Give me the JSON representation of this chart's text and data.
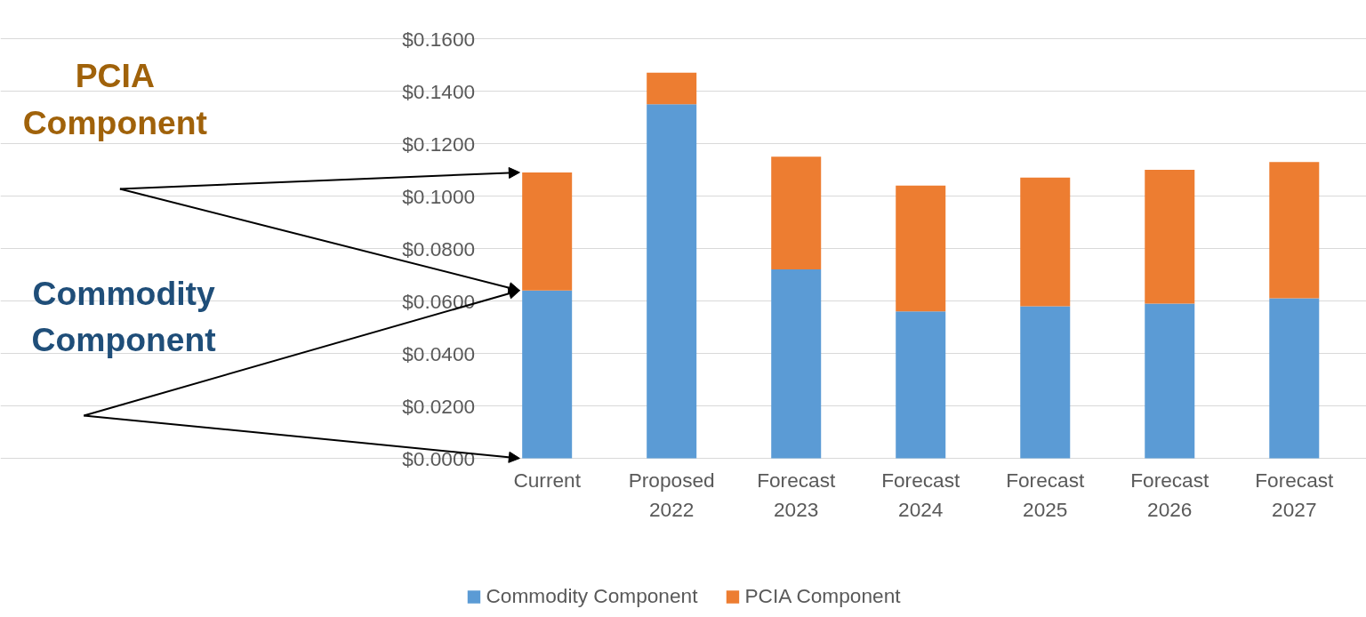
{
  "chart_data": {
    "type": "bar",
    "stacked": true,
    "categories": [
      "Current",
      "Proposed 2022",
      "Forecast 2023",
      "Forecast 2024",
      "Forecast 2025",
      "Forecast 2026",
      "Forecast 2027"
    ],
    "series": [
      {
        "name": "Commodity Component",
        "color": "#5b9bd5",
        "values": [
          0.064,
          0.135,
          0.072,
          0.056,
          0.058,
          0.059,
          0.061
        ]
      },
      {
        "name": "PCIA Component",
        "color": "#ed7d31",
        "values": [
          0.045,
          0.012,
          0.043,
          0.048,
          0.049,
          0.051,
          0.052
        ]
      }
    ],
    "ylim": [
      0,
      0.16
    ],
    "yticks": [
      {
        "value": 0,
        "label": "$0.0000"
      },
      {
        "value": 0.02,
        "label": "$0.0200"
      },
      {
        "value": 0.04,
        "label": "$0.0400"
      },
      {
        "value": 0.06,
        "label": "$0.0600"
      },
      {
        "value": 0.08,
        "label": "$0.0800"
      },
      {
        "value": 0.1,
        "label": "$0.1000"
      },
      {
        "value": 0.12,
        "label": "$0.1200"
      },
      {
        "value": 0.14,
        "label": "$0.1400"
      },
      {
        "value": 0.16,
        "label": "$0.1600"
      }
    ],
    "grid": "y",
    "legend": "bottom",
    "annotations": [
      "PCIA Component",
      "Commodity Component"
    ]
  }
}
